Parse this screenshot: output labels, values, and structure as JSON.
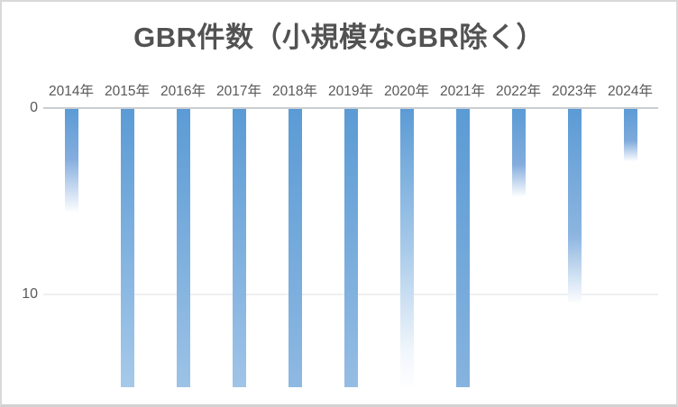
{
  "chart_data": {
    "type": "bar",
    "orientation": "inverted-vertical",
    "title": "GBR件数（小規模なGBR除く）",
    "categories": [
      "2014年",
      "2015年",
      "2016年",
      "2017年",
      "2018年",
      "2019年",
      "2020年",
      "2021年",
      "2022年",
      "2023年",
      "2024年"
    ],
    "values": [
      6,
      15,
      15,
      15,
      15,
      15,
      15,
      15,
      5,
      11,
      3
    ],
    "series": [
      {
        "name": "GBR件数",
        "bars": [
          {
            "category": "2014年",
            "value": 6,
            "stops": [
              [
                "#5B9BD5",
                0
              ],
              [
                "#84ADDE",
                45
              ],
              [
                "#FFFFFF",
                94
              ]
            ]
          },
          {
            "category": "2015年",
            "value": 15,
            "stops": [
              [
                "#5B9BD5",
                0
              ],
              [
                "#A6C9E9",
                100
              ]
            ]
          },
          {
            "category": "2016年",
            "value": 15,
            "stops": [
              [
                "#5B9BD5",
                0
              ],
              [
                "#9DC2E6",
                100
              ]
            ]
          },
          {
            "category": "2017年",
            "value": 15,
            "stops": [
              [
                "#5B9BD5",
                0
              ],
              [
                "#A0C4E7",
                100
              ]
            ]
          },
          {
            "category": "2018年",
            "value": 15,
            "stops": [
              [
                "#5B9BD5",
                0
              ],
              [
                "#8EB9E2",
                100
              ]
            ]
          },
          {
            "category": "2019年",
            "value": 15,
            "stops": [
              [
                "#5B9BD5",
                0
              ],
              [
                "#95BDE3",
                100
              ]
            ]
          },
          {
            "category": "2020年",
            "value": 15,
            "stops": [
              [
                "#5B9BD5",
                0
              ],
              [
                "#A7CAE9",
                50
              ],
              [
                "#F2F7FC",
                88
              ],
              [
                "#FDFEFF",
                100
              ]
            ]
          },
          {
            "category": "2021年",
            "value": 15,
            "stops": [
              [
                "#5B9BD5",
                0
              ],
              [
                "#86B3DF",
                100
              ]
            ]
          },
          {
            "category": "2022年",
            "value": 5,
            "stops": [
              [
                "#5B9BD5",
                0
              ],
              [
                "#82ACDD",
                60
              ],
              [
                "#FFFFFF",
                96
              ]
            ]
          },
          {
            "category": "2023年",
            "value": 11,
            "stops": [
              [
                "#5B9BD5",
                0
              ],
              [
                "#8CB5E0",
                62
              ],
              [
                "#FFFFFF",
                96
              ]
            ]
          },
          {
            "category": "2024年",
            "value": 3,
            "stops": [
              [
                "#5B9BD5",
                0
              ],
              [
                "#7FAADC",
                58
              ],
              [
                "#FFFFFF",
                96
              ]
            ]
          }
        ]
      }
    ],
    "yticks": [
      {
        "label": "0",
        "value": 0
      },
      {
        "label": "10",
        "value": 10
      }
    ],
    "ylim": [
      0,
      15
    ],
    "x_axis_position": "top",
    "grid": "horizontal-only",
    "legend": "none",
    "bar_color": "#5B9BD5",
    "colors": {
      "bar": "#5B9BD5",
      "title_text": "#525252",
      "axis_text": "#595959",
      "zero_line": "#CACDD1",
      "gridline": "#EEEFF1",
      "border": "#D9D9D9",
      "background": "#FFFFFF"
    }
  }
}
